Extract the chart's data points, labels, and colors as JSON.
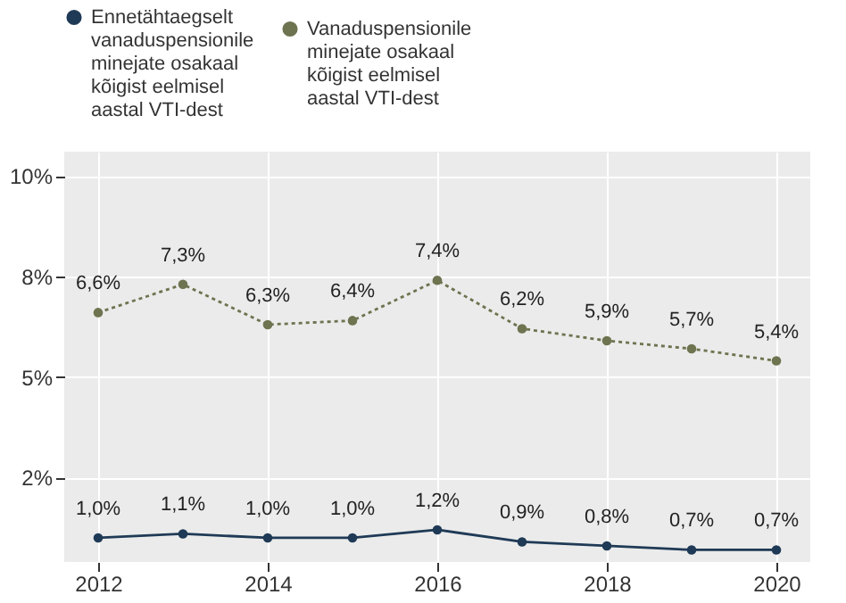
{
  "chart_data": {
    "type": "line",
    "x": [
      2012,
      2013,
      2014,
      2015,
      2016,
      2017,
      2018,
      2019,
      2020
    ],
    "series": [
      {
        "name": "Ennetähtaegselt vanaduspensionile minejate osakaal kõigist eelmisel aastal VTI-dest",
        "color": "#1f3a56",
        "line_style": "solid",
        "values": [
          1.0,
          1.1,
          1.0,
          1.0,
          1.2,
          0.9,
          0.8,
          0.7,
          0.7
        ],
        "value_labels": [
          "1,0%",
          "1,1%",
          "1,0%",
          "1,0%",
          "1,2%",
          "0,9%",
          "0,8%",
          "0,7%",
          "0,7%"
        ]
      },
      {
        "name": "Vanaduspensionile minejate osakaal kõigist eelmisel aastal VTI-dest",
        "color": "#6e7350",
        "line_style": "dotted",
        "values": [
          6.6,
          7.3,
          6.3,
          6.4,
          7.4,
          6.2,
          5.9,
          5.7,
          5.4
        ],
        "value_labels": [
          "6,6%",
          "7,3%",
          "6,3%",
          "6,4%",
          "7,4%",
          "6,2%",
          "5,9%",
          "5,7%",
          "5,4%"
        ]
      }
    ],
    "xlim": [
      2011.6,
      2020.4
    ],
    "xticks": [
      2012,
      2014,
      2016,
      2018,
      2020
    ],
    "ylim": [
      0.4,
      10.6
    ],
    "yticks": [
      {
        "value": 2.5,
        "label": "2%"
      },
      {
        "value": 5,
        "label": "5%"
      },
      {
        "value": 7.5,
        "label": "8%"
      },
      {
        "value": 10,
        "label": "10%"
      }
    ],
    "grid": true,
    "legend": "top",
    "marker": "circle"
  }
}
